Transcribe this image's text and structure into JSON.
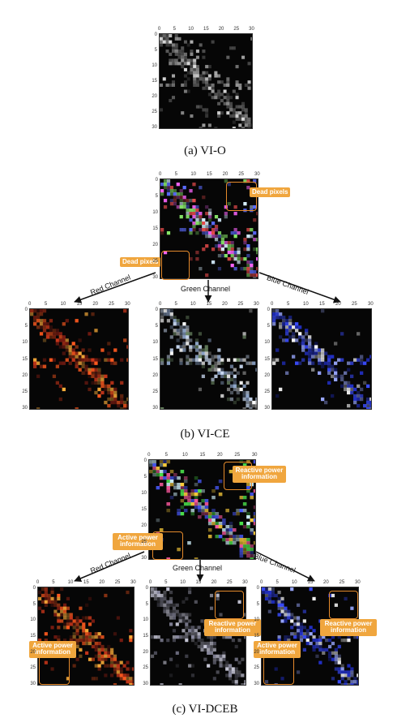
{
  "figure": {
    "captions": {
      "a": "(a) VI-O",
      "b": "(b) VI-CE",
      "c": "(c) VI-DCEB"
    },
    "axis_ticks": [
      "0",
      "5",
      "10",
      "15",
      "20",
      "25",
      "30"
    ],
    "panel_b": {
      "annotations": {
        "dead_pixels_top": "Dead pixels",
        "dead_pixels_left": "Dead pixels"
      },
      "arrows": {
        "red": "Red Channel",
        "green": "Green Channel",
        "blue": "Blue Channel"
      }
    },
    "panel_c": {
      "annotations": {
        "reactive_main": "Reactive power information",
        "active_main": "Active power information",
        "active_red": "Active power information",
        "reactive_green": "Reactive power information",
        "reactive_blue": "Reactive power information",
        "active_blue": "Active power information"
      },
      "arrows": {
        "red": "Red Channel",
        "green": "Green Channel",
        "blue": "Blue Channel"
      }
    },
    "colors": {
      "highlight_tag": "#f0a63e",
      "roi_border": "#e58a2b",
      "gray": "#cfcfcf",
      "red": "#ff3a1a",
      "green": "#6ee05a",
      "blue": "#3046ff"
    }
  }
}
